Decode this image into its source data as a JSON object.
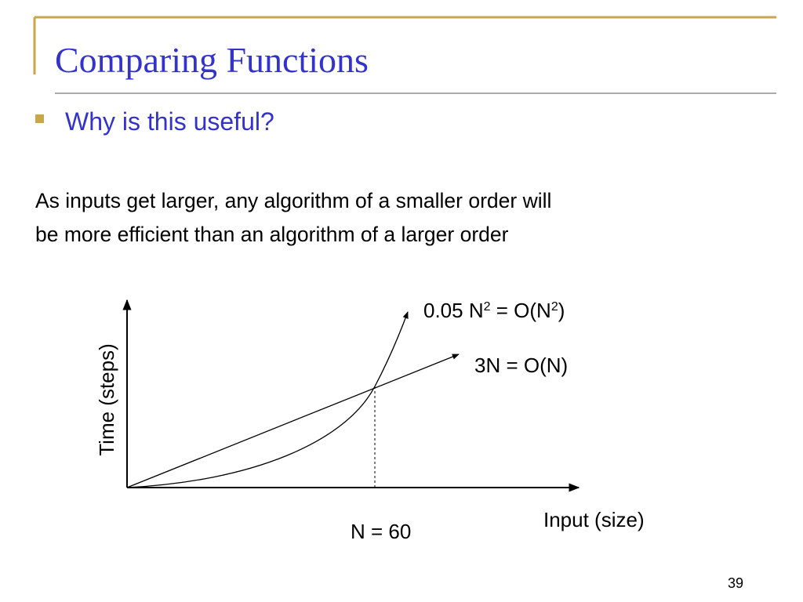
{
  "header": {
    "title": "Comparing Functions"
  },
  "bullet": "Why is this useful?",
  "paragraph": [
    "As inputs get larger, any algorithm of a smaller order will",
    "be more efficient than an algorithm of a larger order"
  ],
  "diagram": {
    "y_axis_label": "Time (steps)",
    "x_axis_label": "Input (size)",
    "quadratic_label": [
      "0.05 N",
      "2",
      " = O(N",
      "2",
      ")"
    ],
    "linear_label": "3N = O(N)",
    "crossover_label": "N = 60"
  },
  "page_number": "39"
}
